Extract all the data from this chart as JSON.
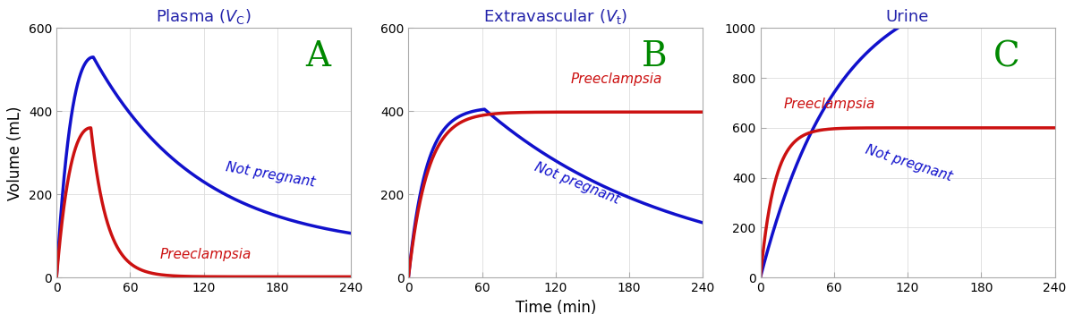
{
  "panel_A": {
    "title": "Plasma ($V_\\mathrm{C}$)",
    "title_color": "#2222aa",
    "ylim": [
      0,
      600
    ],
    "yticks": [
      0,
      200,
      400,
      600
    ],
    "ylabel": "Volume (mL)",
    "label_A": "A",
    "blue_label": "Not pregnant",
    "red_label": "Preeclampsia"
  },
  "panel_B": {
    "title": "Extravascular ($V_\\mathrm{t}$)",
    "title_color": "#2222aa",
    "ylim": [
      0,
      600
    ],
    "yticks": [
      0,
      200,
      400,
      600
    ],
    "ylabel": "",
    "label_B": "B",
    "blue_label": "Not pregnant",
    "red_label": "Preeclampsia"
  },
  "panel_C": {
    "title": "Urine",
    "title_color": "#2222aa",
    "ylim": [
      0,
      1000
    ],
    "yticks": [
      0,
      200,
      400,
      600,
      800,
      1000
    ],
    "ylabel": "",
    "label_C": "C",
    "blue_label": "Not pregnant",
    "red_label": "Preeclampsia"
  },
  "xlabel": "Time (min)",
  "xticks": [
    0,
    60,
    120,
    180,
    240
  ],
  "xlim": [
    0,
    240
  ],
  "blue_color": "#1111cc",
  "red_color": "#cc1111",
  "green_color": "#008800",
  "linewidth": 2.5,
  "bg_color": "#ffffff",
  "label_fontsize": 28,
  "title_fontsize": 13,
  "tick_fontsize": 10,
  "annot_fontsize": 11,
  "xlabel_fontsize": 12
}
